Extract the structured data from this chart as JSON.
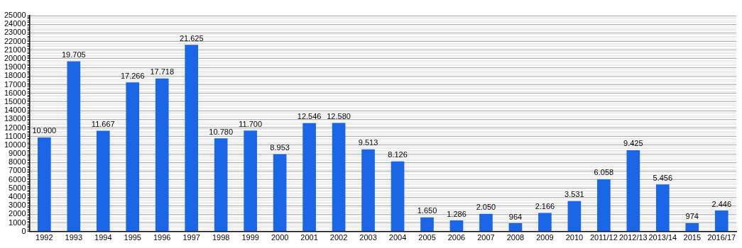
{
  "chart_data": {
    "type": "bar",
    "categories": [
      "1992",
      "1993",
      "1994",
      "1995",
      "1996",
      "1997",
      "1998",
      "1999",
      "2000",
      "2001",
      "2002",
      "2003",
      "2004",
      "2005",
      "2006",
      "2007",
      "2008",
      "2009",
      "2010",
      "2011/12",
      "2012/13",
      "2013/14",
      "2015",
      "2016/17"
    ],
    "values": [
      10900,
      19705,
      11667,
      17266,
      17718,
      21625,
      10780,
      11700,
      8953,
      12546,
      12580,
      9513,
      8126,
      1650,
      1286,
      2050,
      964,
      2166,
      3531,
      6058,
      9425,
      5456,
      974,
      2446
    ],
    "value_labels": [
      "10.900",
      "19.705",
      "11.667",
      "17.266",
      "17.718",
      "21.625",
      "10.780",
      "11.700",
      "8.953",
      "12.546",
      "12.580",
      "9.513",
      "8.126",
      "1.650",
      "1.286",
      "2.050",
      "964",
      "2.166",
      "3.531",
      "6.058",
      "9.425",
      "5.456",
      "974",
      "2.446"
    ],
    "color": "#1a66e6",
    "ylim": [
      0,
      25000
    ],
    "yticks": [
      0,
      {
        "value": 200,
        "label": null
      },
      {
        "value": 400,
        "label": null
      },
      {
        "value": 600,
        "label": null
      },
      {
        "value": 800,
        "label": null
      },
      1000,
      {
        "value": 1200,
        "label": null
      },
      {
        "value": 1400,
        "label": null
      },
      {
        "value": 1600,
        "label": null
      },
      {
        "value": 1800,
        "label": null
      },
      2000,
      {
        "value": 2200,
        "label": null
      },
      {
        "value": 2400,
        "label": null
      },
      {
        "value": 2600,
        "label": null
      },
      {
        "value": 2800,
        "label": null
      },
      3000,
      {
        "value": 3200,
        "label": null
      },
      {
        "value": 3400,
        "label": null
      },
      {
        "value": 3600,
        "label": null
      },
      {
        "value": 3800,
        "label": null
      },
      4000,
      {
        "value": 4200,
        "label": null
      },
      {
        "value": 4400,
        "label": null
      },
      {
        "value": 4600,
        "label": null
      },
      {
        "value": 4800,
        "label": null
      },
      5000,
      {
        "value": 5200,
        "label": null
      },
      {
        "value": 5400,
        "label": null
      },
      {
        "value": 5600,
        "label": null
      },
      {
        "value": 5800,
        "label": null
      },
      6000,
      {
        "value": 6200,
        "label": null
      },
      {
        "value": 6400,
        "label": null
      },
      {
        "value": 6600,
        "label": null
      },
      {
        "value": 6800,
        "label": null
      },
      7000,
      {
        "value": 7200,
        "label": null
      },
      {
        "value": 7400,
        "label": null
      },
      {
        "value": 7600,
        "label": null
      },
      {
        "value": 7800,
        "label": null
      },
      8000,
      {
        "value": 8200,
        "label": null
      },
      {
        "value": 8400,
        "label": null
      },
      {
        "value": 8600,
        "label": null
      },
      {
        "value": 8800,
        "label": null
      },
      9000,
      {
        "value": 9200,
        "label": null
      },
      {
        "value": 9400,
        "label": null
      },
      {
        "value": 9600,
        "label": null
      },
      {
        "value": 9800,
        "label": null
      },
      10000,
      {
        "value": 10200,
        "label": null
      },
      {
        "value": 10400,
        "label": null
      },
      {
        "value": 10600,
        "label": null
      },
      {
        "value": 10800,
        "label": null
      },
      11000,
      {
        "value": 11200,
        "label": null
      },
      {
        "value": 11400,
        "label": null
      },
      {
        "value": 11600,
        "label": null
      },
      {
        "value": 11800,
        "label": null
      },
      12000,
      {
        "value": 12200,
        "label": null
      },
      {
        "value": 12400,
        "label": null
      },
      {
        "value": 12600,
        "label": null
      },
      {
        "value": 12800,
        "label": null
      },
      13000,
      {
        "value": 13200,
        "label": null
      },
      {
        "value": 13400,
        "label": null
      },
      {
        "value": 13600,
        "label": null
      },
      {
        "value": 13800,
        "label": null
      },
      14000,
      {
        "value": 14200,
        "label": null
      },
      {
        "value": 14400,
        "label": null
      },
      {
        "value": 14600,
        "label": null
      },
      {
        "value": 14800,
        "label": null
      },
      15000,
      {
        "value": 15200,
        "label": null
      },
      {
        "value": 15400,
        "label": null
      },
      {
        "value": 15600,
        "label": null
      },
      {
        "value": 15800,
        "label": null
      },
      16000,
      {
        "value": 16200,
        "label": null
      },
      {
        "value": 16400,
        "label": null
      },
      {
        "value": 16600,
        "label": null
      },
      {
        "value": 16800,
        "label": null
      },
      17000,
      {
        "value": 17200,
        "label": null
      },
      {
        "value": 17400,
        "label": null
      },
      {
        "value": 17600,
        "label": null
      },
      {
        "value": 17800,
        "label": null
      },
      18000,
      {
        "value": 18200,
        "label": null
      },
      {
        "value": 18400,
        "label": null
      },
      {
        "value": 18600,
        "label": null
      },
      {
        "value": 18800,
        "label": null
      },
      19000,
      {
        "value": 19200,
        "label": null
      },
      {
        "value": 19400,
        "label": null
      },
      {
        "value": 19600,
        "label": null
      },
      {
        "value": 19800,
        "label": null
      },
      20000,
      {
        "value": 20200,
        "label": null
      },
      {
        "value": 20400,
        "label": null
      },
      {
        "value": 20600,
        "label": null
      },
      {
        "value": 20800,
        "label": null
      },
      21000,
      {
        "value": 21200,
        "label": null
      },
      {
        "value": 21400,
        "label": null
      },
      {
        "value": 21600,
        "label": null
      },
      {
        "value": 21800,
        "label": null
      },
      22000,
      {
        "value": 22200,
        "label": null
      },
      {
        "value": 22400,
        "label": null
      },
      {
        "value": 22600,
        "label": null
      },
      {
        "value": 22800,
        "label": null
      },
      23000,
      {
        "value": 23200,
        "label": null
      },
      {
        "value": 23400,
        "label": null
      },
      {
        "value": 23600,
        "label": null
      },
      {
        "value": 23800,
        "label": null
      },
      24000,
      {
        "value": 24200,
        "label": null
      },
      {
        "value": 24400,
        "label": null
      },
      {
        "value": 24600,
        "label": null
      },
      {
        "value": 24800,
        "label": null
      },
      25000
    ],
    "grid": "y"
  }
}
